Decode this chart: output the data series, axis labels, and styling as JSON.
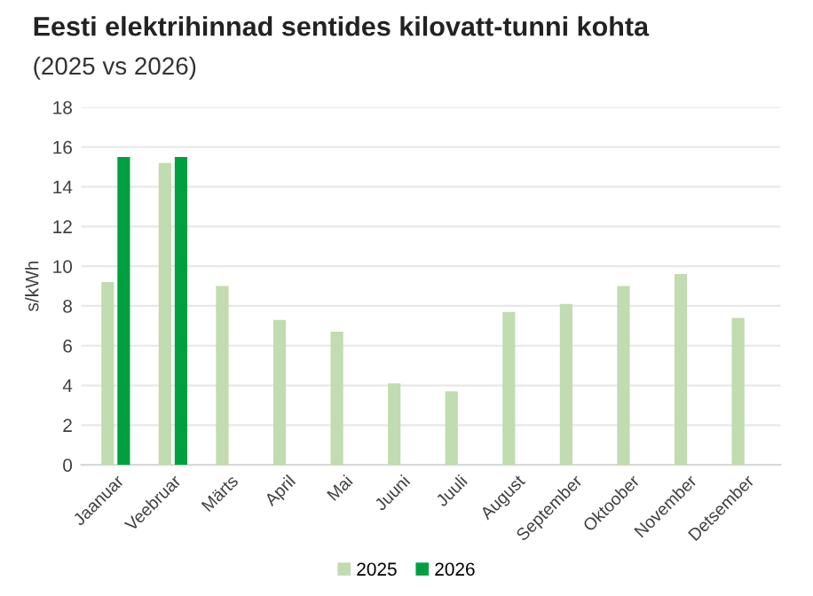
{
  "chart_data": {
    "type": "bar",
    "title": "Eesti elektrihinnad sentides kilovatt-tunni kohta",
    "subtitle": "(2025 vs 2026)",
    "ylabel": "s/kWh",
    "categories": [
      "Jaanuar",
      "Veebruar",
      "Märts",
      "April",
      "Mai",
      "Juuni",
      "Juuli",
      "August",
      "September",
      "Oktoober",
      "November",
      "Detsember"
    ],
    "series": [
      {
        "name": "2025",
        "color": "#c0dcb0",
        "values": [
          9.2,
          15.2,
          9.0,
          7.3,
          6.7,
          4.1,
          3.7,
          7.7,
          8.1,
          9.0,
          9.6,
          7.4
        ]
      },
      {
        "name": "2026",
        "color": "#00a040",
        "values": [
          15.5,
          15.5,
          null,
          null,
          null,
          null,
          null,
          null,
          null,
          null,
          null,
          null
        ]
      }
    ],
    "ylim": [
      0,
      18
    ],
    "yticks": [
      0,
      2,
      4,
      6,
      8,
      10,
      12,
      14,
      16,
      18
    ],
    "grid": "y",
    "legend": "bottom"
  }
}
